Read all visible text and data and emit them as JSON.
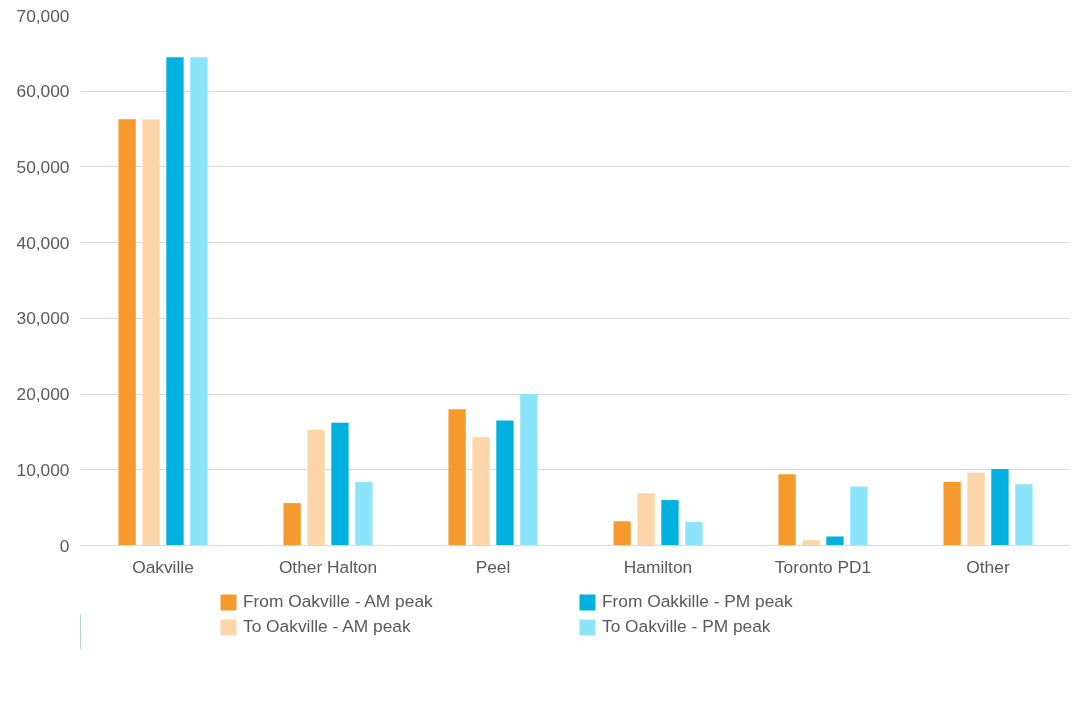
{
  "chart_data": {
    "type": "bar",
    "categories": [
      "Oakville",
      "Other Halton",
      "Peel",
      "Hamilton",
      "Toronto PD1",
      "Other"
    ],
    "series": [
      {
        "name": "From Oakville - AM peak",
        "color": "#f79a2e",
        "values": [
          56300,
          5600,
          18000,
          3200,
          9400,
          8400
        ]
      },
      {
        "name": "To Oakville - AM peak",
        "color": "#fcd5a8",
        "values": [
          56300,
          15300,
          14300,
          6900,
          700,
          9600
        ]
      },
      {
        "name": "From Oakkille - PM peak",
        "color": "#00b0de",
        "values": [
          64500,
          16200,
          16500,
          6000,
          1200,
          10100
        ]
      },
      {
        "name": "To Oakville - PM peak",
        "color": "#8ce4fb",
        "values": [
          64500,
          8400,
          20000,
          3100,
          7800,
          8100
        ]
      }
    ],
    "ylim": [
      0,
      70000
    ],
    "yticks": [
      {
        "value": 0,
        "label": "0"
      },
      {
        "value": 10000,
        "label": "10,000"
      },
      {
        "value": 20000,
        "label": "20,000"
      },
      {
        "value": 30000,
        "label": "30,000"
      },
      {
        "value": 40000,
        "label": "40,000"
      },
      {
        "value": 50000,
        "label": "50,000"
      },
      {
        "value": 60000,
        "label": "60,000"
      },
      {
        "value": 70000,
        "label": "70,000"
      }
    ],
    "grid": "y",
    "legend": "bottom"
  }
}
